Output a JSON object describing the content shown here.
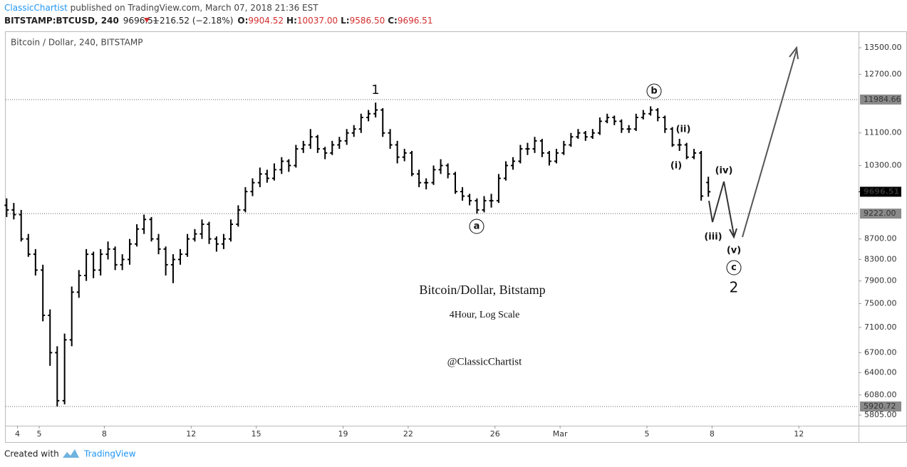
{
  "header": {
    "author": "ClassicChartist",
    "published": " published on TradingView.com, March 07, 2018 21:36 EST",
    "symbol": "BITSTAMP:BTCUSD, 240",
    "last": "9696.51",
    "change": "−216.52 (−2.18%)",
    "ohlc": [
      {
        "label": "O:",
        "value": "9904.52"
      },
      {
        "label": "H:",
        "value": "10037.00"
      },
      {
        "label": "L:",
        "value": "9586.50"
      },
      {
        "label": "C:",
        "value": "9696.51"
      }
    ]
  },
  "footer": {
    "created": "Created with",
    "brand": "TradingView"
  },
  "chart_data": {
    "type": "ohlc",
    "title": "Bitcoin / Dollar, 240, BITSTAMP",
    "color": "#000000",
    "log_scale": true,
    "texts": [
      "Bitcoin/Dollar, Bitstamp",
      "4Hour, Log Scale",
      "@ClassicChartist"
    ],
    "annotations": [
      "1",
      "a",
      "b",
      "(i)",
      "(ii)",
      "(iii)",
      "(iv)",
      "(v)",
      "c",
      "2"
    ],
    "x": [
      3.5,
      3.83,
      4.17,
      4.5,
      4.83,
      5.17,
      5.5,
      5.83,
      6.17,
      6.5,
      6.83,
      7.17,
      7.5,
      7.83,
      8.17,
      8.5,
      8.83,
      9.17,
      9.5,
      9.83,
      10.17,
      10.5,
      10.83,
      11.17,
      11.5,
      11.83,
      12.17,
      12.5,
      12.83,
      13.17,
      13.5,
      13.83,
      14.17,
      14.5,
      14.83,
      15.17,
      15.5,
      15.83,
      16.17,
      16.5,
      16.83,
      17.17,
      17.5,
      17.83,
      18.17,
      18.5,
      18.83,
      19.17,
      19.5,
      19.83,
      20.17,
      20.5,
      20.83,
      21.17,
      21.5,
      21.83,
      22.17,
      22.5,
      22.83,
      23.17,
      23.5,
      23.83,
      24.17,
      24.5,
      24.83,
      25.17,
      25.5,
      25.83,
      26.17,
      26.5,
      26.83,
      27.17,
      27.5,
      27.83,
      28.17,
      28.5,
      28.83,
      29.17,
      29.5,
      29.83,
      30.17,
      30.5,
      30.83,
      31.17,
      31.5,
      31.83,
      32.17,
      32.5,
      32.83,
      33.17,
      33.5,
      33.83,
      34.17,
      34.5,
      34.83,
      35.17,
      35.5,
      35.83
    ],
    "open": [
      9400,
      9300,
      9200,
      8700,
      8400,
      8100,
      7300,
      6700,
      6000,
      6900,
      7700,
      8000,
      8400,
      8100,
      8400,
      8500,
      8200,
      8300,
      8600,
      8900,
      9100,
      8700,
      8500,
      8200,
      8300,
      8400,
      8700,
      8800,
      9000,
      8700,
      8600,
      8700,
      9000,
      9300,
      9700,
      9900,
      10100,
      10000,
      10200,
      10400,
      10300,
      10700,
      10800,
      11000,
      10700,
      10600,
      10800,
      10900,
      11100,
      11200,
      11500,
      11600,
      11700,
      11100,
      10800,
      10500,
      10600,
      10100,
      9900,
      9900,
      10200,
      10300,
      10100,
      9700,
      9600,
      9500,
      9300,
      9500,
      9500,
      10000,
      10300,
      10400,
      10700,
      10700,
      10900,
      10600,
      10400,
      10600,
      10800,
      11000,
      11100,
      11000,
      11100,
      11400,
      11500,
      11400,
      11200,
      11200,
      11500,
      11600,
      11700,
      11500,
      11200,
      10800,
      10800,
      10500,
      10600,
      9904.52
    ],
    "high": [
      9550,
      9450,
      9300,
      8800,
      8500,
      8200,
      7400,
      6800,
      7000,
      7800,
      8100,
      8500,
      8450,
      8500,
      8650,
      8550,
      8400,
      8700,
      9000,
      9200,
      9150,
      8800,
      8550,
      8400,
      8500,
      8800,
      8900,
      9100,
      9050,
      8750,
      8800,
      9100,
      9400,
      9800,
      10000,
      10250,
      10200,
      10350,
      10500,
      10450,
      10800,
      10900,
      11200,
      11050,
      10750,
      10900,
      11000,
      11200,
      11300,
      11600,
      11700,
      11900,
      11750,
      11200,
      10900,
      10700,
      10650,
      10200,
      10000,
      10300,
      10450,
      10350,
      10150,
      9800,
      9650,
      9550,
      9600,
      9650,
      10100,
      10400,
      10500,
      10800,
      10850,
      11000,
      10950,
      10650,
      10700,
      10900,
      11100,
      11200,
      11150,
      11200,
      11500,
      11600,
      11550,
      11450,
      11300,
      11600,
      11700,
      11800,
      11750,
      11550,
      11250,
      10950,
      10850,
      10700,
      10650,
      10037
    ],
    "low": [
      9150,
      9100,
      8650,
      8350,
      8000,
      7200,
      6500,
      5920.72,
      5950,
      6800,
      7600,
      7900,
      7950,
      8000,
      8300,
      8100,
      8100,
      8200,
      8550,
      8800,
      8650,
      8400,
      8000,
      7860,
      8200,
      8350,
      8650,
      8700,
      8600,
      8450,
      8500,
      8650,
      8950,
      9250,
      9600,
      9800,
      9900,
      9950,
      10100,
      10150,
      10250,
      10600,
      10700,
      10600,
      10450,
      10550,
      10700,
      10800,
      11000,
      11100,
      11400,
      11500,
      11000,
      10700,
      10350,
      10400,
      10050,
      9800,
      9750,
      9850,
      10100,
      10000,
      9650,
      9500,
      9400,
      9222,
      9250,
      9350,
      9450,
      9950,
      10200,
      10350,
      10550,
      10600,
      10500,
      10300,
      10350,
      10550,
      10750,
      10950,
      10900,
      10950,
      11050,
      11350,
      11300,
      11100,
      11100,
      11150,
      11450,
      11550,
      11400,
      11100,
      10750,
      10650,
      10450,
      10450,
      9500,
      9586.5
    ],
    "close": [
      9300,
      9200,
      8700,
      8400,
      8100,
      7300,
      6700,
      6000,
      6900,
      7700,
      8000,
      8400,
      8100,
      8400,
      8500,
      8200,
      8300,
      8600,
      8900,
      9100,
      8700,
      8500,
      8200,
      8300,
      8400,
      8700,
      8800,
      9000,
      8700,
      8600,
      8700,
      9000,
      9300,
      9700,
      9900,
      10100,
      10000,
      10200,
      10400,
      10300,
      10700,
      10800,
      11000,
      10700,
      10600,
      10800,
      10900,
      11100,
      11200,
      11500,
      11600,
      11700,
      11100,
      10800,
      10500,
      10600,
      10100,
      9900,
      9900,
      10200,
      10300,
      10100,
      9700,
      9600,
      9500,
      9300,
      9500,
      9500,
      10000,
      10300,
      10400,
      10700,
      10700,
      10900,
      10600,
      10400,
      10600,
      10800,
      11000,
      11100,
      11000,
      11100,
      11400,
      11500,
      11400,
      11200,
      11200,
      11500,
      11600,
      11700,
      11500,
      11200,
      10800,
      10800,
      10500,
      10600,
      9600,
      9696.51
    ],
    "xlim": [
      3.457,
      42.75
    ],
    "xticks": [
      4,
      5,
      8,
      12,
      15,
      19,
      22,
      26,
      {
        "value": 29,
        "label": "Mar"
      },
      {
        "value": 33,
        "label": "5"
      },
      {
        "value": 36,
        "label": "8"
      },
      {
        "value": 40,
        "label": "12"
      }
    ],
    "ylim": [
      5665,
      13995
    ],
    "yticks": [
      {
        "value": 13500,
        "label": "13500.00"
      },
      {
        "value": 12700,
        "label": "12700.00"
      },
      {
        "value": 11100,
        "label": "11100.00"
      },
      {
        "value": 10300,
        "label": "10300.00"
      },
      {
        "value": 8700,
        "label": "8700.00"
      },
      {
        "value": 8300,
        "label": "8300.00"
      },
      {
        "value": 7900,
        "label": "7900.00"
      },
      {
        "value": 7500,
        "label": "7500.00"
      },
      {
        "value": 7100,
        "label": "7100.00"
      },
      {
        "value": 6700,
        "label": "6700.00"
      },
      {
        "value": 6400,
        "label": "6400.00"
      },
      {
        "value": 6080,
        "label": "6080.00"
      },
      {
        "value": 5805,
        "label": "5805.00"
      }
    ],
    "levels": [
      11984.66,
      {
        "value": 9222,
        "label": "9222.00"
      },
      5920.72
    ],
    "last_price": 9696.51
  }
}
